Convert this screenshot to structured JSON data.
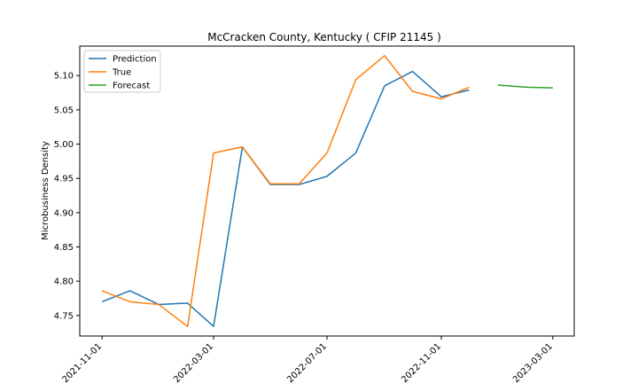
{
  "chart_data": {
    "type": "line",
    "title": "McCracken County, Kentucky ( CFIP 21145 )",
    "xlabel": "",
    "ylabel": "Microbusiness Density",
    "x_ticks": [
      "2021-11-01",
      "2022-03-01",
      "2022-07-01",
      "2022-11-01",
      "2023-03-01"
    ],
    "y_ticks": [
      "4.75",
      "4.80",
      "4.85",
      "4.90",
      "4.95",
      "5.00",
      "5.05",
      "5.10"
    ],
    "xlim": [
      "2021-10-08",
      "2023-03-24"
    ],
    "ylim": [
      4.72,
      5.143
    ],
    "grid": false,
    "legend_position": "top-left",
    "series": [
      {
        "name": "Prediction",
        "color": "#1f77b4",
        "x": [
          "2021-11-01",
          "2021-12-01",
          "2022-01-01",
          "2022-02-01",
          "2022-03-01",
          "2022-04-01",
          "2022-05-01",
          "2022-06-01",
          "2022-07-01",
          "2022-08-01",
          "2022-09-01",
          "2022-10-01",
          "2022-11-01",
          "2022-12-01"
        ],
        "values": [
          4.77,
          4.786,
          4.766,
          4.768,
          4.734,
          4.996,
          4.941,
          4.941,
          4.953,
          4.987,
          5.085,
          5.106,
          5.069,
          5.079
        ]
      },
      {
        "name": "True",
        "color": "#ff7f0e",
        "x": [
          "2021-11-01",
          "2021-12-01",
          "2022-01-01",
          "2022-02-01",
          "2022-03-01",
          "2022-04-01",
          "2022-05-01",
          "2022-06-01",
          "2022-07-01",
          "2022-08-01",
          "2022-09-01",
          "2022-10-01",
          "2022-11-01",
          "2022-12-01"
        ],
        "values": [
          4.786,
          4.77,
          4.766,
          4.734,
          4.987,
          4.996,
          4.942,
          4.942,
          4.987,
          5.094,
          5.129,
          5.077,
          5.066,
          5.083
        ]
      },
      {
        "name": "Forecast",
        "color": "#2ca02c",
        "x": [
          "2023-01-01",
          "2023-02-01",
          "2023-03-01"
        ],
        "values": [
          5.086,
          5.083,
          5.082
        ]
      }
    ]
  }
}
